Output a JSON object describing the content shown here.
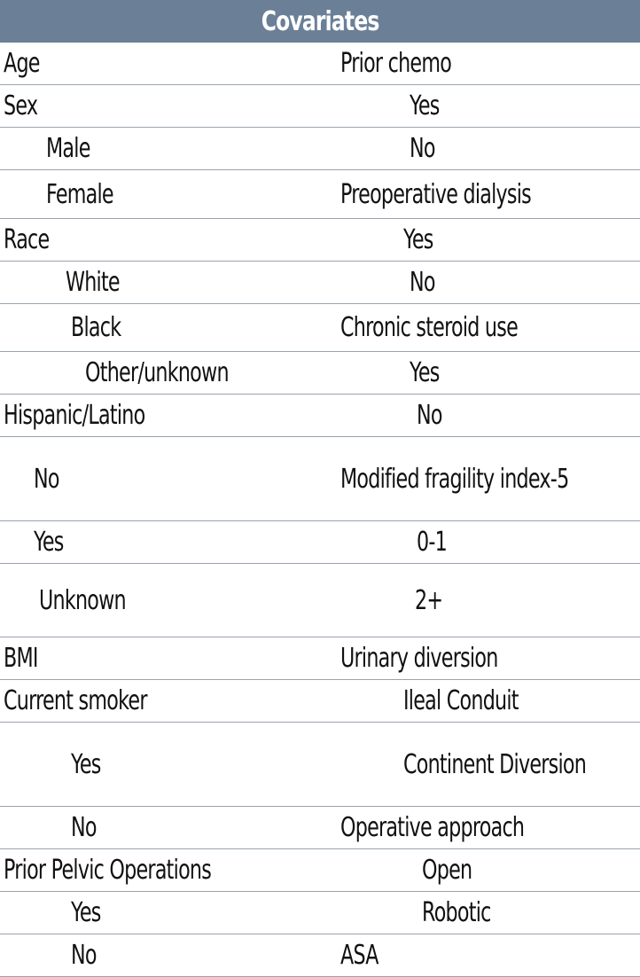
{
  "table": {
    "header": "Covariates",
    "rows": [
      {
        "left": "Age",
        "right": "Prior chemo"
      },
      {
        "left": "Sex",
        "right": "Yes"
      },
      {
        "left": "Male",
        "right": "No"
      },
      {
        "left": "Female",
        "right": "Preoperative dialysis"
      },
      {
        "left": "Race",
        "right": "Yes"
      },
      {
        "left": "White",
        "right": "No"
      },
      {
        "left": "Black",
        "right": "Chronic steroid use"
      },
      {
        "left": "Other/unknown",
        "right": "Yes"
      },
      {
        "left": "Hispanic/Latino",
        "right": "No"
      },
      {
        "left": "No",
        "right": "Modified fragility index-5"
      },
      {
        "left": "Yes",
        "right": "0-1"
      },
      {
        "left": "Unknown",
        "right": "2+"
      },
      {
        "left": "BMI",
        "right": "Urinary diversion"
      },
      {
        "left": "Current smoker",
        "right": "Ileal Conduit"
      },
      {
        "left": "Yes",
        "right": "Continent Diversion"
      },
      {
        "left": "No",
        "right": "Operative approach"
      },
      {
        "left": "Prior Pelvic Operations",
        "right": "Open"
      },
      {
        "left": "Yes",
        "right": "Robotic"
      },
      {
        "left": "No",
        "right": "ASA"
      }
    ]
  }
}
